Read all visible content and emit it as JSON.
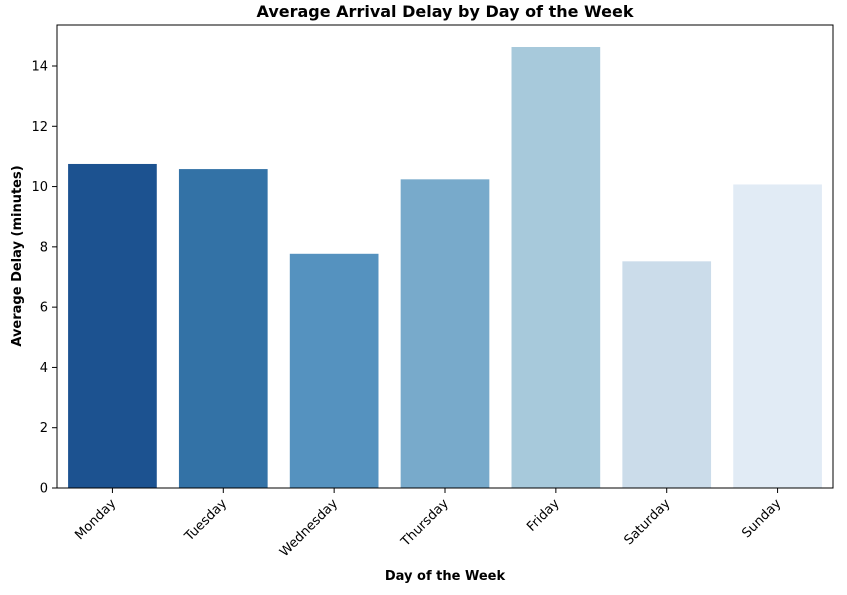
{
  "chart_data": {
    "type": "bar",
    "title": "Average Arrival Delay by Day of the Week",
    "xlabel": "Day of the Week",
    "ylabel": "Average Delay (minutes)",
    "categories": [
      "Monday",
      "Tuesday",
      "Wednesday",
      "Thursday",
      "Friday",
      "Saturday",
      "Sunday"
    ],
    "values": [
      10.75,
      10.58,
      7.77,
      10.24,
      14.63,
      7.52,
      10.07
    ],
    "colors": [
      "#1c5290",
      "#3372a6",
      "#5592bf",
      "#78aacb",
      "#a7c9db",
      "#cbdcea",
      "#e1ebf5"
    ],
    "ylim": [
      0,
      15.36
    ],
    "yticks": [
      "0",
      "2",
      "4",
      "6",
      "8",
      "10",
      "12",
      "14"
    ],
    "grid": false,
    "legend": "none"
  }
}
